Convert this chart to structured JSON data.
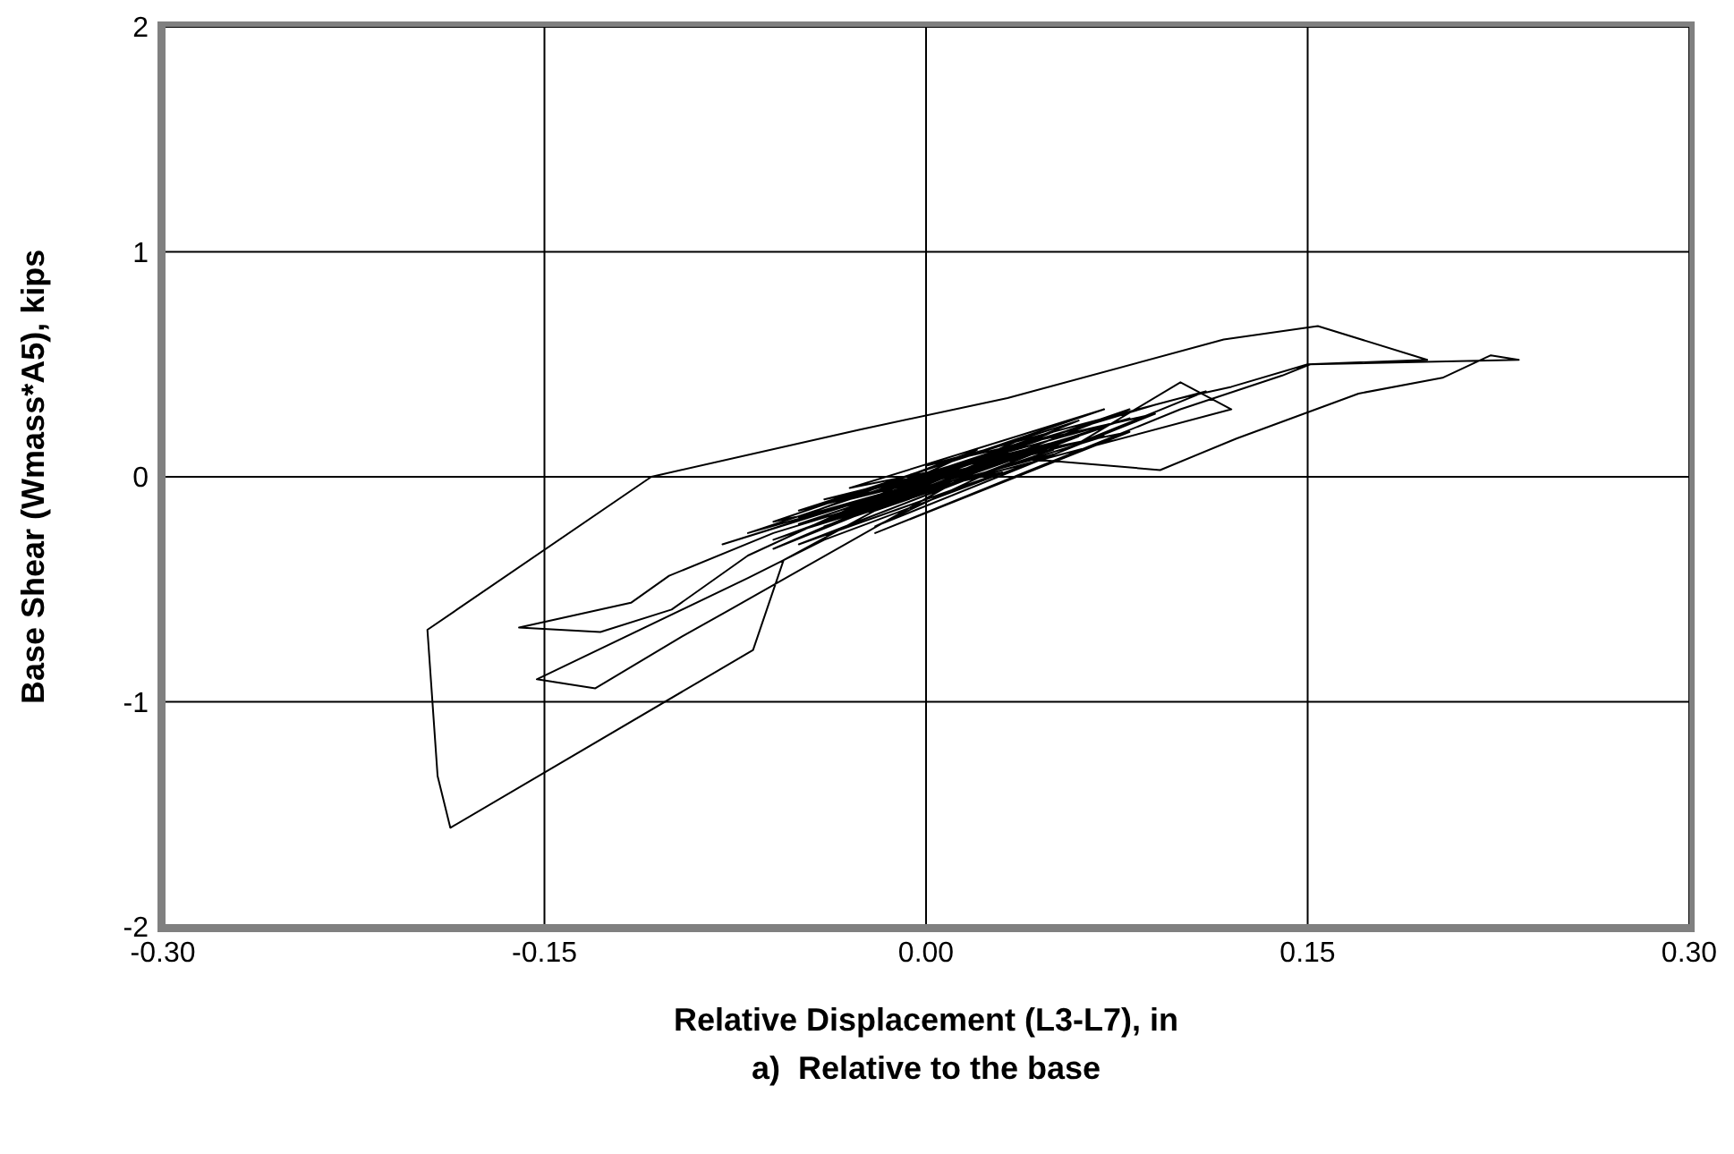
{
  "chart_data": {
    "type": "line",
    "xlabel": "Relative Displacement (L3-L7), in",
    "ylabel": "Base Shear (Wmass*A5), kips",
    "annotations": [
      "a)  Relative to the base"
    ],
    "xlim": [
      -0.3,
      0.3
    ],
    "xticks": [
      {
        "value": -0.3,
        "label": "-0.30"
      },
      {
        "value": -0.15,
        "label": "-0.15"
      },
      {
        "value": 0,
        "label": "0.00"
      },
      {
        "value": 0.15,
        "label": "0.15"
      },
      {
        "value": 0.3,
        "label": "0.30"
      }
    ],
    "ylim": [
      -2,
      2
    ],
    "yticks": [
      -2,
      -1,
      0,
      1,
      2
    ],
    "grid": true,
    "marker": "none",
    "line_style": "solid",
    "series": [
      {
        "color": "#000000",
        "x": [
          0.0,
          0.03,
          -0.02,
          0.04,
          -0.03,
          0.05,
          -0.04,
          0.06,
          -0.05,
          0.02,
          -0.06,
          0.07,
          -0.01,
          0.08,
          -0.03,
          0.05,
          -0.07,
          0.04,
          -0.02,
          0.09,
          0.0,
          0.1,
          0.12,
          0.15,
          0.197,
          0.154,
          0.117,
          0.032,
          -0.026,
          -0.108,
          -0.196,
          -0.192,
          -0.187,
          -0.068,
          -0.056,
          -0.02,
          0.05,
          -0.04,
          0.06,
          -0.05,
          0.03,
          -0.06,
          0.07,
          -0.03,
          0.08,
          -0.02,
          0.1,
          0.14,
          0.151,
          0.233,
          0.222,
          0.203,
          0.17,
          0.122,
          0.092,
          0.04,
          -0.04,
          0.05,
          -0.05,
          0.02,
          -0.07,
          -0.1,
          -0.128,
          -0.16,
          -0.116,
          -0.101,
          -0.06,
          0.03,
          -0.04,
          0.06,
          -0.03,
          0.07,
          -0.05,
          0.04,
          -0.077,
          -0.096,
          -0.13,
          -0.153,
          -0.07,
          -0.04,
          0.05,
          -0.03,
          0.08,
          -0.01,
          0.09,
          0.11,
          0.06,
          0.1,
          0.12,
          0.02,
          -0.05,
          0.03,
          -0.06,
          0.01,
          -0.08,
          0.0
        ],
        "values": [
          0.0,
          0.1,
          -0.12,
          0.18,
          -0.08,
          0.15,
          -0.2,
          0.25,
          -0.15,
          0.05,
          -0.28,
          0.22,
          -0.05,
          0.3,
          -0.18,
          0.2,
          -0.25,
          0.1,
          -0.22,
          0.28,
          0.05,
          0.35,
          0.4,
          0.5,
          0.52,
          0.67,
          0.61,
          0.35,
          0.21,
          0.0,
          -0.68,
          -1.33,
          -1.56,
          -0.77,
          -0.37,
          -0.15,
          0.12,
          -0.1,
          0.18,
          -0.3,
          0.02,
          -0.2,
          0.3,
          -0.05,
          0.2,
          -0.25,
          0.3,
          0.45,
          0.5,
          0.52,
          0.54,
          0.44,
          0.37,
          0.17,
          0.03,
          0.08,
          -0.22,
          0.14,
          -0.18,
          0.12,
          -0.35,
          -0.59,
          -0.69,
          -0.67,
          -0.56,
          -0.44,
          -0.25,
          0.06,
          -0.12,
          0.22,
          -0.1,
          0.18,
          -0.24,
          0.16,
          -0.59,
          -0.71,
          -0.94,
          -0.9,
          -0.45,
          -0.28,
          0.1,
          -0.14,
          0.26,
          -0.02,
          0.32,
          0.38,
          0.15,
          0.42,
          0.3,
          0.0,
          -0.21,
          0.09,
          -0.32,
          0.02,
          -0.3,
          -0.02
        ]
      }
    ]
  }
}
